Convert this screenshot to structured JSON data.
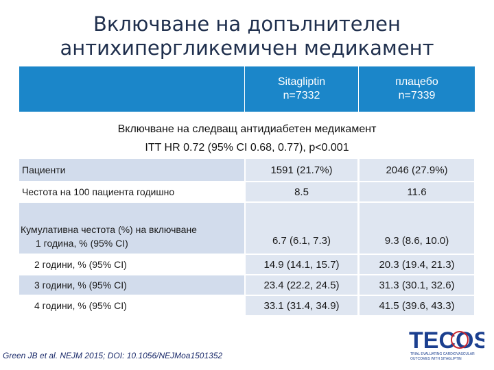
{
  "title_line1": "Включване на допълнителен",
  "title_line2": "антихипергликемичен  медикамент",
  "header": {
    "col1_name": "Sitagliptin",
    "col1_n": "n=7332",
    "col2_name": "плацебо",
    "col2_n": "n=7339"
  },
  "subtitle1": "Включване на следващ антидиабетен медикамент",
  "subtitle2": "ITT HR 0.72 (95% CI 0.68, 0.77), p<0.001",
  "rows": [
    {
      "label": "Пациенти",
      "v1": "1591 (21.7%)",
      "v2": "2046 (27.9%)"
    },
    {
      "label": "Честота на 100 пациента годишно",
      "v1": "8.5",
      "v2": "11.6"
    }
  ],
  "cumulative": {
    "label": "Кумулативна честота (%) на включване",
    "rows": [
      {
        "label": "1 година, % (95% CI)",
        "v1": "6.7 (6.1, 7.3)",
        "v2": "9.3 (8.6, 10.0)"
      },
      {
        "label": "2 години, % (95% CI)",
        "v1": "14.9 (14.1, 15.7)",
        "v2": "20.3 (19.4, 21.3)"
      },
      {
        "label": "3 години, % (95% CI)",
        "v1": "23.4 (22.2, 24.5)",
        "v2": "31.3 (30.1, 32.6)"
      },
      {
        "label": "4 години, % (95% CI)",
        "v1": "33.1 (31.4, 34.9)",
        "v2": "41.5 (39.6, 43.3)"
      }
    ]
  },
  "footer": "Green JB et al. NEJM 2015; DOI: 10.1056/NEJMoa1501352",
  "logo": {
    "text": "TECOS",
    "tagline1": "TRIAL EVALUATING CARDIOVASCULAR",
    "tagline2": "OUTCOMES WITH SITAGLIPTIN"
  },
  "colors": {
    "header_blue": "#1b86c9",
    "cell_fill": "#dfe6f1",
    "title": "#1f2f4d"
  }
}
